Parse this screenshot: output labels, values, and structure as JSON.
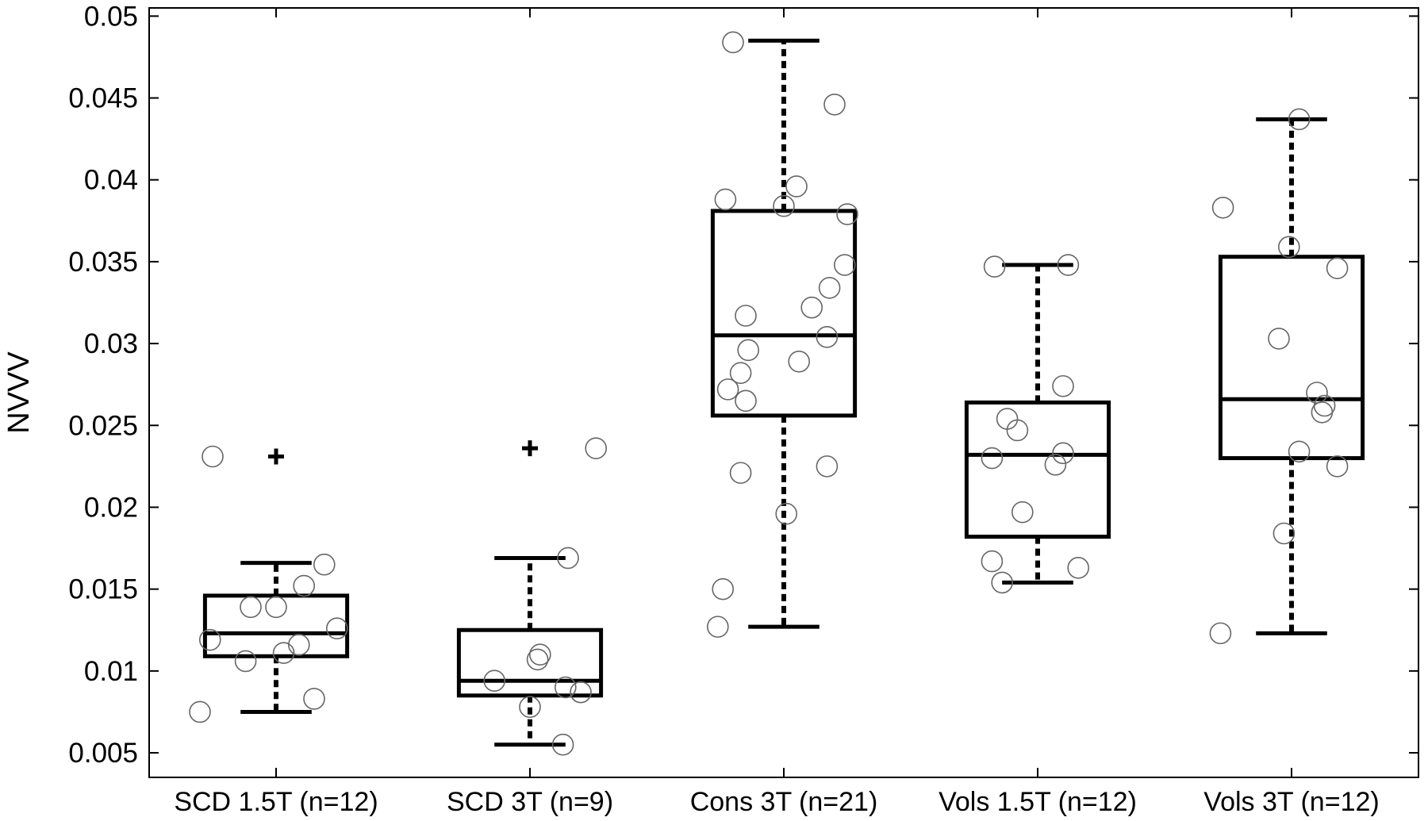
{
  "chart_data": {
    "type": "box",
    "ylabel": "NVVV",
    "ylim": [
      0.0035,
      0.0505
    ],
    "yticks": [
      0.005,
      0.01,
      0.015,
      0.02,
      0.025,
      0.03,
      0.035,
      0.04,
      0.045,
      0.05
    ],
    "ytick_labels": [
      "0.005",
      "0.01",
      "0.015",
      "0.02",
      "0.025",
      "0.03",
      "0.035",
      "0.04",
      "0.045",
      "0.05"
    ],
    "grid": false,
    "categories": [
      "SCD 1.5T (n=12)",
      "SCD 3T (n=9)",
      "Cons 3T (n=21)",
      "Vols 1.5T (n=12)",
      "Vols 3T (n=12)"
    ],
    "boxes": [
      {
        "q1": 0.0109,
        "median": 0.0123,
        "q3": 0.0146,
        "whisker_low": 0.0075,
        "whisker_high": 0.0166,
        "outliers": [
          0.0231
        ]
      },
      {
        "q1": 0.0085,
        "median": 0.0094,
        "q3": 0.0125,
        "whisker_low": 0.0055,
        "whisker_high": 0.0169,
        "outliers": [
          0.0236
        ]
      },
      {
        "q1": 0.0256,
        "median": 0.0305,
        "q3": 0.0381,
        "whisker_low": 0.0127,
        "whisker_high": 0.0485,
        "outliers": []
      },
      {
        "q1": 0.0182,
        "median": 0.0232,
        "q3": 0.0264,
        "whisker_low": 0.0154,
        "whisker_high": 0.0348,
        "outliers": []
      },
      {
        "q1": 0.023,
        "median": 0.0266,
        "q3": 0.0353,
        "whisker_low": 0.0123,
        "whisker_high": 0.0437,
        "outliers": []
      }
    ],
    "points": [
      [
        [
          0.75,
          0.0231
        ],
        [
          0.74,
          0.0119
        ],
        [
          0.7,
          0.0075
        ],
        [
          0.9,
          0.0139
        ],
        [
          1.0,
          0.0139
        ],
        [
          0.88,
          0.0106
        ],
        [
          1.03,
          0.0111
        ],
        [
          1.09,
          0.0116
        ],
        [
          1.11,
          0.0152
        ],
        [
          1.19,
          0.0165
        ],
        [
          1.24,
          0.0126
        ],
        [
          1.15,
          0.0083
        ]
      ],
      [
        [
          2.26,
          0.0236
        ],
        [
          2.15,
          0.0169
        ],
        [
          2.04,
          0.011
        ],
        [
          2.03,
          0.0107
        ],
        [
          1.86,
          0.0094
        ],
        [
          2.0,
          0.0078
        ],
        [
          2.14,
          0.009
        ],
        [
          2.2,
          0.0087
        ],
        [
          2.13,
          0.0055
        ]
      ],
      [
        [
          2.8,
          0.0484
        ],
        [
          3.2,
          0.0446
        ],
        [
          3.05,
          0.0396
        ],
        [
          2.77,
          0.0388
        ],
        [
          3.0,
          0.0384
        ],
        [
          3.25,
          0.0379
        ],
        [
          3.24,
          0.0348
        ],
        [
          3.18,
          0.0334
        ],
        [
          3.11,
          0.0322
        ],
        [
          2.85,
          0.0317
        ],
        [
          3.17,
          0.0304
        ],
        [
          2.86,
          0.0296
        ],
        [
          3.06,
          0.0289
        ],
        [
          2.83,
          0.0282
        ],
        [
          2.78,
          0.0272
        ],
        [
          2.85,
          0.0265
        ],
        [
          3.17,
          0.0225
        ],
        [
          2.83,
          0.0221
        ],
        [
          3.01,
          0.0196
        ],
        [
          2.76,
          0.015
        ],
        [
          2.74,
          0.0127
        ]
      ],
      [
        [
          3.83,
          0.0347
        ],
        [
          4.12,
          0.0348
        ],
        [
          4.1,
          0.0274
        ],
        [
          3.88,
          0.0254
        ],
        [
          3.92,
          0.0247
        ],
        [
          4.1,
          0.0233
        ],
        [
          3.82,
          0.023
        ],
        [
          4.07,
          0.0226
        ],
        [
          3.94,
          0.0197
        ],
        [
          3.82,
          0.0167
        ],
        [
          3.86,
          0.0154
        ],
        [
          4.16,
          0.0163
        ]
      ],
      [
        [
          5.03,
          0.0437
        ],
        [
          4.73,
          0.0383
        ],
        [
          4.99,
          0.0359
        ],
        [
          5.18,
          0.0346
        ],
        [
          4.95,
          0.0303
        ],
        [
          5.1,
          0.027
        ],
        [
          5.13,
          0.0262
        ],
        [
          5.12,
          0.0258
        ],
        [
          5.03,
          0.0234
        ],
        [
          5.18,
          0.0225
        ],
        [
          4.97,
          0.0184
        ],
        [
          4.72,
          0.0123
        ]
      ]
    ]
  }
}
